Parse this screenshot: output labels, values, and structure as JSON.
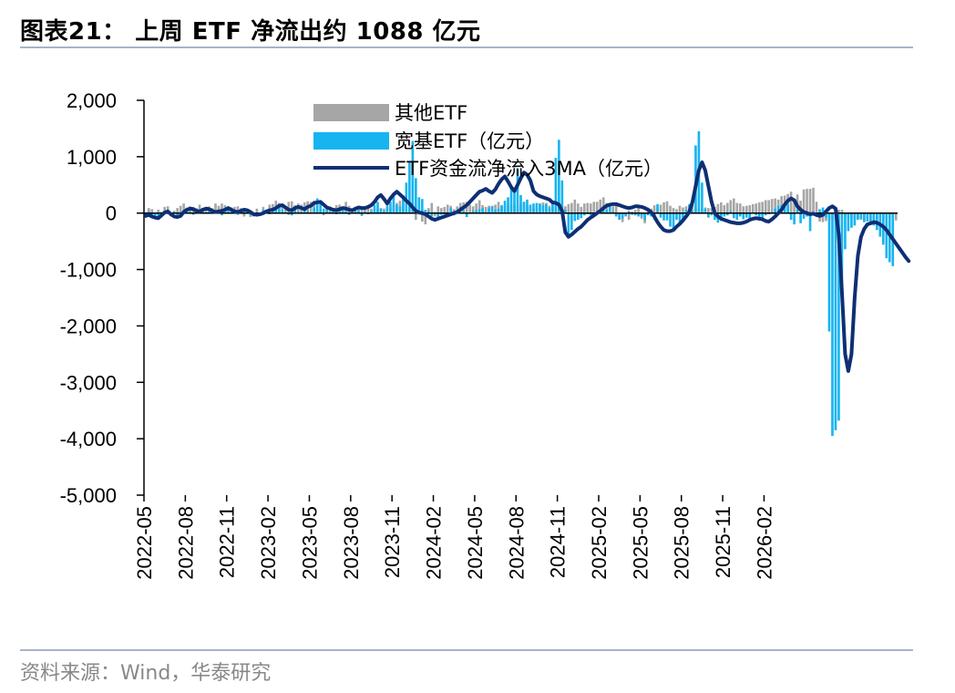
{
  "title": "图表21：  上周 ETF 净流出约 1088 亿元",
  "source": "资料来源：Wind，华泰研究",
  "chart_data": {
    "type": "bar",
    "title": "",
    "xlabel": "",
    "ylabel": "",
    "ylim": [
      -5000,
      2000
    ],
    "yticks": [
      "2,000",
      "1,000",
      "0",
      "-1,000",
      "-2,000",
      "-3,000",
      "-4,000",
      "-5,000"
    ],
    "ytick_values": [
      2000,
      1000,
      0,
      -1000,
      -2000,
      -3000,
      -4000,
      -5000
    ],
    "xticks": [
      "2022-05",
      "2022-08",
      "2022-11",
      "2023-02",
      "2023-05",
      "2023-08",
      "2023-11",
      "2024-02",
      "2024-05",
      "2024-08",
      "2024-11",
      "2025-02",
      "2025-05",
      "2025-08",
      "2025-11",
      "2026-02"
    ],
    "legend": {
      "placement": "top-center",
      "entries": [
        "其他ETF",
        "宽基ETF（亿元）",
        "ETF资金流净流入3MA（亿元）"
      ]
    },
    "colors": {
      "other": "#a6a6a6",
      "broad": "#16b4f0",
      "ma": "#0e2f74"
    },
    "series": [
      {
        "name": "其他ETF",
        "kind": "bar",
        "values": [
          -60,
          90,
          70,
          -50,
          60,
          -80,
          110,
          120,
          -60,
          40,
          90,
          130,
          170,
          100,
          120,
          110,
          90,
          150,
          60,
          80,
          120,
          90,
          170,
          130,
          170,
          140,
          90,
          60,
          110,
          120,
          90,
          -60,
          70,
          -70,
          -30,
          80,
          -40,
          110,
          60,
          150,
          160,
          220,
          180,
          120,
          100,
          200,
          210,
          140,
          170,
          150,
          190,
          210,
          200,
          220,
          210,
          60,
          -40,
          100,
          120,
          90,
          140,
          150,
          80,
          200,
          130,
          60,
          100,
          120,
          60,
          90,
          120,
          80,
          80,
          60,
          90,
          80,
          140,
          90,
          140,
          180,
          220,
          170,
          60,
          120,
          180,
          -120,
          40,
          -150,
          -200,
          90,
          180,
          -60,
          120,
          90,
          110,
          150,
          130,
          70,
          120,
          180,
          190,
          200,
          150,
          120,
          170,
          230,
          140,
          110,
          130,
          130,
          150,
          200,
          120,
          110,
          170,
          140,
          160,
          130,
          170,
          200,
          140,
          120,
          90,
          100,
          170,
          190,
          180,
          130,
          150,
          110,
          160,
          140,
          120,
          160,
          180,
          240,
          170,
          110,
          170,
          180,
          170,
          200,
          200,
          240,
          280,
          180,
          170,
          120,
          150,
          -100,
          -160,
          -60,
          -120,
          30,
          60,
          100,
          -100,
          -180,
          100,
          80,
          140,
          110,
          150,
          190,
          210,
          130,
          90,
          70,
          130,
          100,
          120,
          140,
          160,
          120,
          60,
          40,
          100,
          90,
          90,
          110,
          160,
          190,
          140,
          180,
          230,
          260,
          180,
          170,
          120,
          130,
          140,
          160,
          170,
          190,
          200,
          230,
          230,
          250,
          260,
          240,
          300,
          310,
          340,
          380,
          240,
          330,
          220,
          420,
          430,
          430,
          450,
          200,
          -150,
          -160,
          -140,
          -120,
          -110,
          -130,
          60,
          60,
          -60,
          -80,
          -100,
          -110,
          -100,
          -120,
          -140,
          -150,
          -160,
          -170,
          -120,
          -140,
          -120,
          -70,
          -100,
          -80,
          -130
        ]
      },
      {
        "name": "宽基ETF（亿元）",
        "kind": "bar",
        "values": [
          -30,
          30,
          -40,
          -80,
          -60,
          20,
          40,
          -20,
          -50,
          30,
          -60,
          20,
          40,
          80,
          30,
          -30,
          -10,
          60,
          90,
          20,
          40,
          60,
          0,
          40,
          -40,
          80,
          50,
          100,
          20,
          -30,
          40,
          90,
          30,
          -40,
          -60,
          10,
          -10,
          60,
          40,
          -20,
          20,
          80,
          150,
          60,
          20,
          -30,
          -40,
          120,
          30,
          20,
          80,
          40,
          0,
          100,
          260,
          170,
          80,
          60,
          30,
          30,
          -20,
          50,
          60,
          30,
          -30,
          10,
          80,
          50,
          -50,
          30,
          -20,
          40,
          150,
          200,
          80,
          40,
          120,
          200,
          320,
          150,
          120,
          260,
          540,
          920,
          1280,
          620,
          280,
          250,
          60,
          40,
          -60,
          20,
          -120,
          -30,
          -20,
          -50,
          90,
          -40,
          30,
          110,
          40,
          -70,
          -10,
          40,
          50,
          70,
          90,
          30,
          100,
          120,
          60,
          80,
          140,
          220,
          280,
          460,
          360,
          780,
          320,
          200,
          240,
          150,
          170,
          180,
          170,
          140,
          160,
          100,
          180,
          980,
          1300,
          580,
          60,
          -420,
          -300,
          -140,
          -120,
          -90,
          -40,
          -20,
          -40,
          -30,
          20,
          50,
          100,
          60,
          140,
          30,
          -60,
          -120,
          -100,
          -50,
          40,
          -30,
          -40,
          -60,
          -60,
          -130,
          -40,
          -60,
          -120,
          160,
          -80,
          -130,
          -130,
          -240,
          -300,
          -120,
          -200,
          -140,
          60,
          160,
          40,
          1200,
          1450,
          540,
          80,
          -80,
          -40,
          -120,
          -170,
          -140,
          -60,
          -40,
          40,
          -90,
          -120,
          -60,
          -110,
          -80,
          -100,
          20,
          -40,
          -110,
          -80,
          -40,
          -20,
          20,
          80,
          130,
          140,
          130,
          150,
          -120,
          -200,
          60,
          -180,
          -100,
          -60,
          -320,
          -40,
          -70,
          70,
          100,
          -80,
          -2100,
          -3950,
          -3850,
          -3680,
          -1380,
          -640,
          -320,
          -260,
          -220,
          -120,
          -100,
          -160,
          -140,
          -180,
          -220,
          -300,
          -420,
          -560,
          -800,
          -870,
          -940
        ]
      },
      {
        "name": "ETF资金流净流入3MA（亿元）",
        "kind": "line",
        "values": [
          -50,
          -30,
          -60,
          -80,
          -90,
          -40,
          10,
          30,
          -20,
          -60,
          -70,
          -50,
          20,
          60,
          80,
          70,
          40,
          30,
          60,
          80,
          70,
          40,
          20,
          30,
          40,
          60,
          90,
          60,
          30,
          20,
          40,
          60,
          50,
          20,
          -20,
          -30,
          -20,
          0,
          30,
          50,
          60,
          90,
          130,
          140,
          100,
          60,
          50,
          90,
          110,
          90,
          70,
          110,
          130,
          180,
          190,
          200,
          150,
          100,
          80,
          60,
          50,
          70,
          90,
          80,
          60,
          50,
          80,
          100,
          90,
          90,
          110,
          140,
          200,
          280,
          320,
          250,
          170,
          260,
          330,
          380,
          330,
          280,
          220,
          170,
          100,
          40,
          10,
          0,
          -20,
          -60,
          -100,
          -120,
          -100,
          -80,
          -60,
          -40,
          -20,
          0,
          20,
          60,
          100,
          140,
          200,
          260,
          320,
          380,
          400,
          430,
          390,
          360,
          420,
          520,
          600,
          650,
          560,
          460,
          390,
          500,
          620,
          720,
          680,
          580,
          390,
          330,
          300,
          280,
          260,
          240,
          190,
          180,
          150,
          40,
          -340,
          -420,
          -380,
          -330,
          -280,
          -240,
          -180,
          -120,
          -80,
          -40,
          0,
          40,
          90,
          130,
          150,
          160,
          160,
          140,
          120,
          100,
          90,
          100,
          120,
          120,
          110,
          90,
          60,
          20,
          -60,
          -160,
          -240,
          -300,
          -320,
          -320,
          -300,
          -240,
          -190,
          -130,
          -60,
          20,
          200,
          480,
          760,
          900,
          760,
          480,
          200,
          0,
          -60,
          -100,
          -120,
          -140,
          -160,
          -170,
          -180,
          -180,
          -170,
          -150,
          -120,
          -100,
          -90,
          -100,
          -110,
          -140,
          -150,
          -110,
          -60,
          0,
          60,
          150,
          220,
          260,
          230,
          120,
          60,
          20,
          0,
          -20,
          -10,
          -30,
          -50,
          -30,
          30,
          90,
          120,
          80,
          -380,
          -1400,
          -2500,
          -2800,
          -2500,
          -1500,
          -760,
          -420,
          -280,
          -200,
          -180,
          -160,
          -170,
          -200,
          -240,
          -300,
          -380,
          -460,
          -540,
          -620,
          -700,
          -780,
          -850
        ]
      }
    ]
  }
}
